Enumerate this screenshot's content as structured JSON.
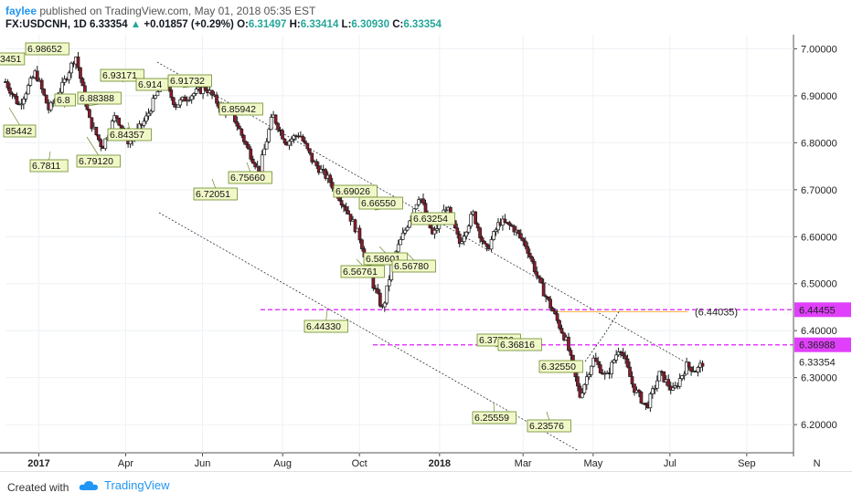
{
  "header": {
    "author": "faylee",
    "published_text": "published on TradingView.com, May 01, 2018 05:35 EST"
  },
  "symbol_bar": {
    "symbol": "FX:USDCNH, 1D",
    "last": "6.33354",
    "change_arrow": "▲",
    "change": "+0.01857 (+0.29%)",
    "o_label": "O:",
    "o_value": "6.31497",
    "h_label": "H:",
    "h_value": "6.33414",
    "l_label": "L:",
    "l_value": "6.30930",
    "c_label": "C:",
    "c_value": "6.33354"
  },
  "footer": {
    "created_with": "Created with",
    "brand": "TradingView",
    "logo_icon": "tradingview-cloud-icon"
  },
  "colors": {
    "up_candle": "#ffffff",
    "down_candle": "#8b1a2b",
    "candle_outline": "#1c1c1c",
    "level_line": "#e040fb",
    "target_line": "#ffb74d",
    "channel_line": "#333333",
    "annotation_fill": "#f1f8c8",
    "annotation_border": "#6a8a2a"
  },
  "chart_data": {
    "type": "candlestick",
    "symbol": "FX:USDCNH",
    "interval": "1D",
    "ylim": [
      6.14,
      7.03
    ],
    "y_ticks": [
      "7.00000",
      "6.90000",
      "6.80000",
      "6.70000",
      "6.60000",
      "6.50000",
      "6.40000",
      "6.30000",
      "6.20000"
    ],
    "x_ticks": [
      "2017",
      "Apr",
      "Jun",
      "Aug",
      "Oct",
      "2018",
      "Mar",
      "May",
      "Jul",
      "Sep",
      "N"
    ],
    "price_path": [
      [
        0,
        6.93
      ],
      [
        0.4,
        6.88
      ],
      [
        0.9,
        6.95
      ],
      [
        1.3,
        6.87
      ],
      [
        1.7,
        6.92
      ],
      [
        2.1,
        6.98652
      ],
      [
        2.5,
        6.85
      ],
      [
        2.9,
        6.79
      ],
      [
        3.3,
        6.86
      ],
      [
        3.7,
        6.8
      ],
      [
        4.2,
        6.85
      ],
      [
        4.7,
        6.93171
      ],
      [
        5.1,
        6.88
      ],
      [
        5.5,
        6.9
      ],
      [
        6.0,
        6.91732
      ],
      [
        6.4,
        6.88
      ],
      [
        6.8,
        6.86
      ],
      [
        7.3,
        6.78
      ],
      [
        7.6,
        6.74
      ],
      [
        8.0,
        6.85942
      ],
      [
        8.4,
        6.8
      ],
      [
        8.8,
        6.82
      ],
      [
        9.2,
        6.76
      ],
      [
        9.7,
        6.72
      ],
      [
        10.2,
        6.66
      ],
      [
        10.6,
        6.6
      ],
      [
        11.0,
        6.5
      ],
      [
        11.3,
        6.4433
      ],
      [
        11.6,
        6.55
      ],
      [
        12.0,
        6.62
      ],
      [
        12.4,
        6.69026
      ],
      [
        12.8,
        6.6
      ],
      [
        13.2,
        6.6655
      ],
      [
        13.6,
        6.58601
      ],
      [
        14.0,
        6.65
      ],
      [
        14.4,
        6.5678
      ],
      [
        14.8,
        6.63254
      ],
      [
        15.2,
        6.62
      ],
      [
        15.6,
        6.58
      ],
      [
        16.0,
        6.5
      ],
      [
        16.4,
        6.44
      ],
      [
        16.8,
        6.37736
      ],
      [
        17.2,
        6.26
      ],
      [
        17.6,
        6.34
      ],
      [
        18.0,
        6.3
      ],
      [
        18.4,
        6.36816
      ],
      [
        18.8,
        6.28
      ],
      [
        19.2,
        6.23576
      ],
      [
        19.6,
        6.31
      ],
      [
        20.0,
        6.27
      ],
      [
        20.4,
        6.3255
      ],
      [
        20.7,
        6.31497
      ],
      [
        20.9,
        6.33354
      ]
    ],
    "annotations": [
      {
        "text": "6.98652"
      },
      {
        "text": "3451"
      },
      {
        "text": "85442"
      },
      {
        "text": "6.7811"
      },
      {
        "text": "6.79120"
      },
      {
        "text": "6.8"
      },
      {
        "text": "6.88388"
      },
      {
        "text": "6.93171"
      },
      {
        "text": "6.914"
      },
      {
        "text": "6.91732"
      },
      {
        "text": "6.84357"
      },
      {
        "text": "6.85942"
      },
      {
        "text": "6.75660"
      },
      {
        "text": "6.72051"
      },
      {
        "text": "6.69026"
      },
      {
        "text": "6.66550"
      },
      {
        "text": "6.58601"
      },
      {
        "text": "6.56761"
      },
      {
        "text": "6.56780"
      },
      {
        "text": "6.63254"
      },
      {
        "text": "6.44330"
      },
      {
        "text": "6.37736"
      },
      {
        "text": "6.36816"
      },
      {
        "text": "6.32550"
      },
      {
        "text": "6.25559"
      },
      {
        "text": "6.23576"
      }
    ],
    "price_labels": [
      {
        "text": "6.44455",
        "value": 6.44455,
        "style": "magenta"
      },
      {
        "text": "6.36988",
        "value": 6.36988,
        "style": "magenta"
      },
      {
        "text": "6.33354",
        "value": 6.33354,
        "style": "plain"
      }
    ],
    "horizontal_levels": [
      {
        "value": 6.44455,
        "style": "dashed-magenta"
      },
      {
        "value": 6.36988,
        "style": "dashed-magenta"
      }
    ],
    "target": {
      "text": "(6.44035)",
      "value": 6.44035
    },
    "channel": {
      "upper": {
        "from": [
          6.93
        ],
        "to": [
          6.33
        ]
      },
      "lower": {
        "from": [
          6.73
        ],
        "to": [
          6.15
        ]
      }
    },
    "grid": true
  }
}
